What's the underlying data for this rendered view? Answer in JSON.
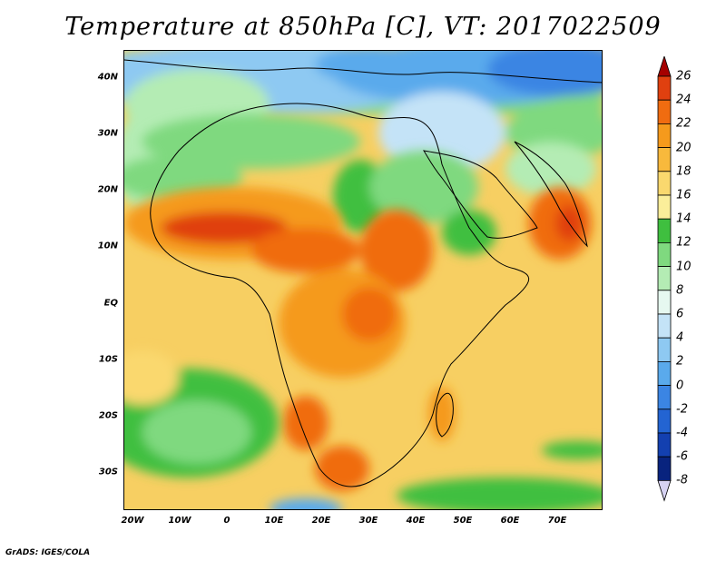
{
  "title": "Temperature at 850hPa [C], VT: 2017022509",
  "credit": "GrADS: IGES/COLA",
  "lat_labels": [
    "40N",
    "30N",
    "20N",
    "10N",
    "EQ",
    "10S",
    "20S",
    "30S"
  ],
  "lon_labels": [
    "20W",
    "10W",
    "0",
    "10E",
    "20E",
    "30E",
    "40E",
    "50E",
    "60E",
    "70E"
  ],
  "colorbar": {
    "levels": [
      "26",
      "24",
      "22",
      "20",
      "18",
      "16",
      "14",
      "12",
      "10",
      "8",
      "6",
      "4",
      "2",
      "0",
      "-2",
      "-4",
      "-6",
      "-8"
    ],
    "colors": [
      "#a50000",
      "#e0400f",
      "#f06c10",
      "#f59a1c",
      "#f8b93c",
      "#fad86e",
      "#fbee9a",
      "#3fbf3f",
      "#7fd97f",
      "#b4ecb4",
      "#e6f8f0",
      "#c4e3f7",
      "#8ec9f2",
      "#5aaaec",
      "#3b85e3",
      "#2364d2",
      "#1340b0",
      "#08237e",
      "#d6d2f2"
    ]
  }
}
